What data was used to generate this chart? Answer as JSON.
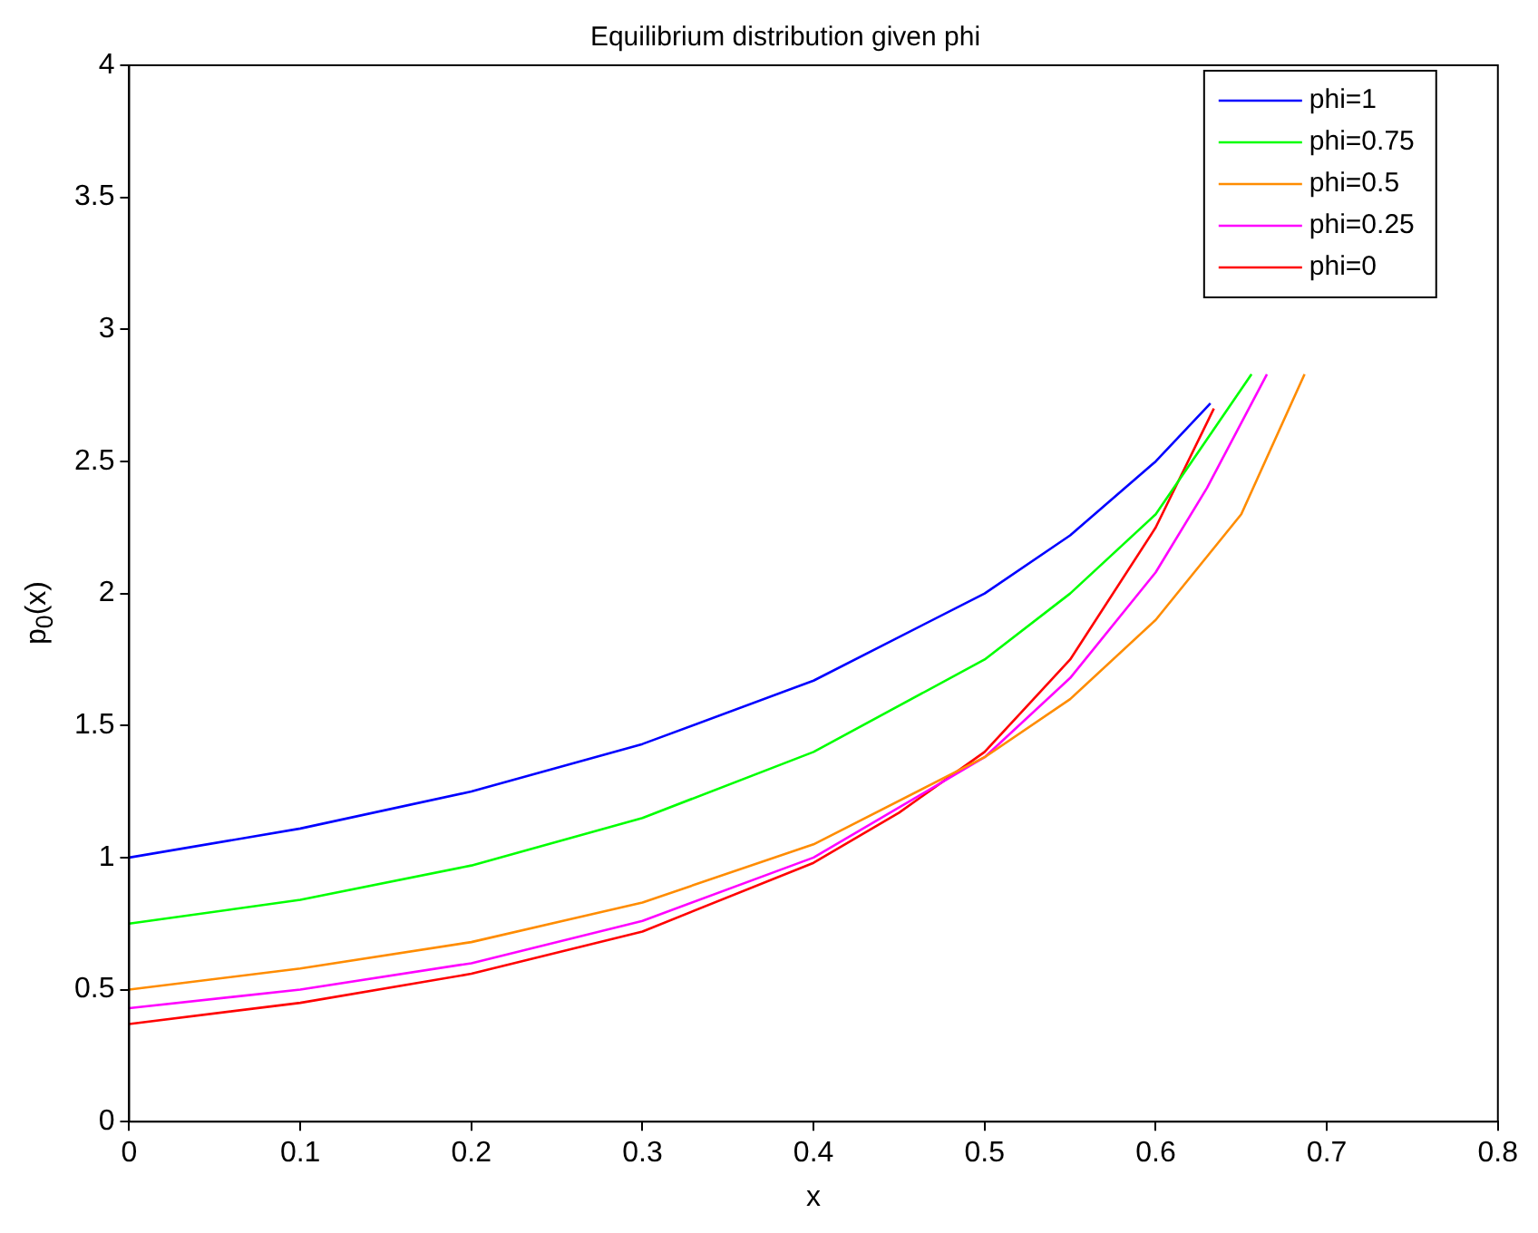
{
  "chart_data": {
    "type": "line",
    "title": "Equilibrium distribution given phi",
    "xlabel": "x",
    "ylabel": "p$_{0}$(x)",
    "xlim": [
      0,
      0.8
    ],
    "xticks": [
      0,
      0.1,
      0.2,
      0.3,
      0.4,
      0.5,
      0.6,
      0.7,
      0.8
    ],
    "ylim": [
      0,
      4
    ],
    "yticks": [
      0,
      0.5,
      1,
      1.5,
      2,
      2.5,
      3,
      3.5,
      4
    ],
    "grid": false,
    "legend": "top right",
    "marker": "none",
    "line_style": "solid",
    "series": [
      {
        "name": "phi=1",
        "color": "#0000ff",
        "x": [
          0,
          0.1,
          0.2,
          0.3,
          0.4,
          0.5,
          0.55,
          0.6,
          0.632
        ],
        "values": [
          1.0,
          1.11,
          1.25,
          1.43,
          1.67,
          2.0,
          2.22,
          2.5,
          2.72
        ]
      },
      {
        "name": "phi=0.75",
        "color": "#00ff00",
        "x": [
          0,
          0.1,
          0.2,
          0.3,
          0.4,
          0.5,
          0.55,
          0.6,
          0.656
        ],
        "values": [
          0.75,
          0.84,
          0.97,
          1.15,
          1.4,
          1.75,
          2.0,
          2.3,
          2.83
        ]
      },
      {
        "name": "phi=0.5",
        "color": "#ff8c00",
        "x": [
          0,
          0.1,
          0.2,
          0.3,
          0.4,
          0.5,
          0.55,
          0.6,
          0.65,
          0.687
        ],
        "values": [
          0.5,
          0.58,
          0.68,
          0.83,
          1.05,
          1.38,
          1.6,
          1.9,
          2.3,
          2.83
        ]
      },
      {
        "name": "phi=0.25",
        "color": "#ff00ff",
        "x": [
          0,
          0.1,
          0.2,
          0.3,
          0.4,
          0.5,
          0.55,
          0.6,
          0.63,
          0.665
        ],
        "values": [
          0.43,
          0.5,
          0.6,
          0.76,
          1.0,
          1.38,
          1.68,
          2.08,
          2.4,
          2.83
        ]
      },
      {
        "name": "phi=0",
        "color": "#ff0000",
        "x": [
          0,
          0.1,
          0.2,
          0.3,
          0.4,
          0.45,
          0.5,
          0.55,
          0.6,
          0.634
        ],
        "values": [
          0.37,
          0.45,
          0.56,
          0.72,
          0.98,
          1.17,
          1.4,
          1.75,
          2.25,
          2.7
        ]
      }
    ]
  }
}
